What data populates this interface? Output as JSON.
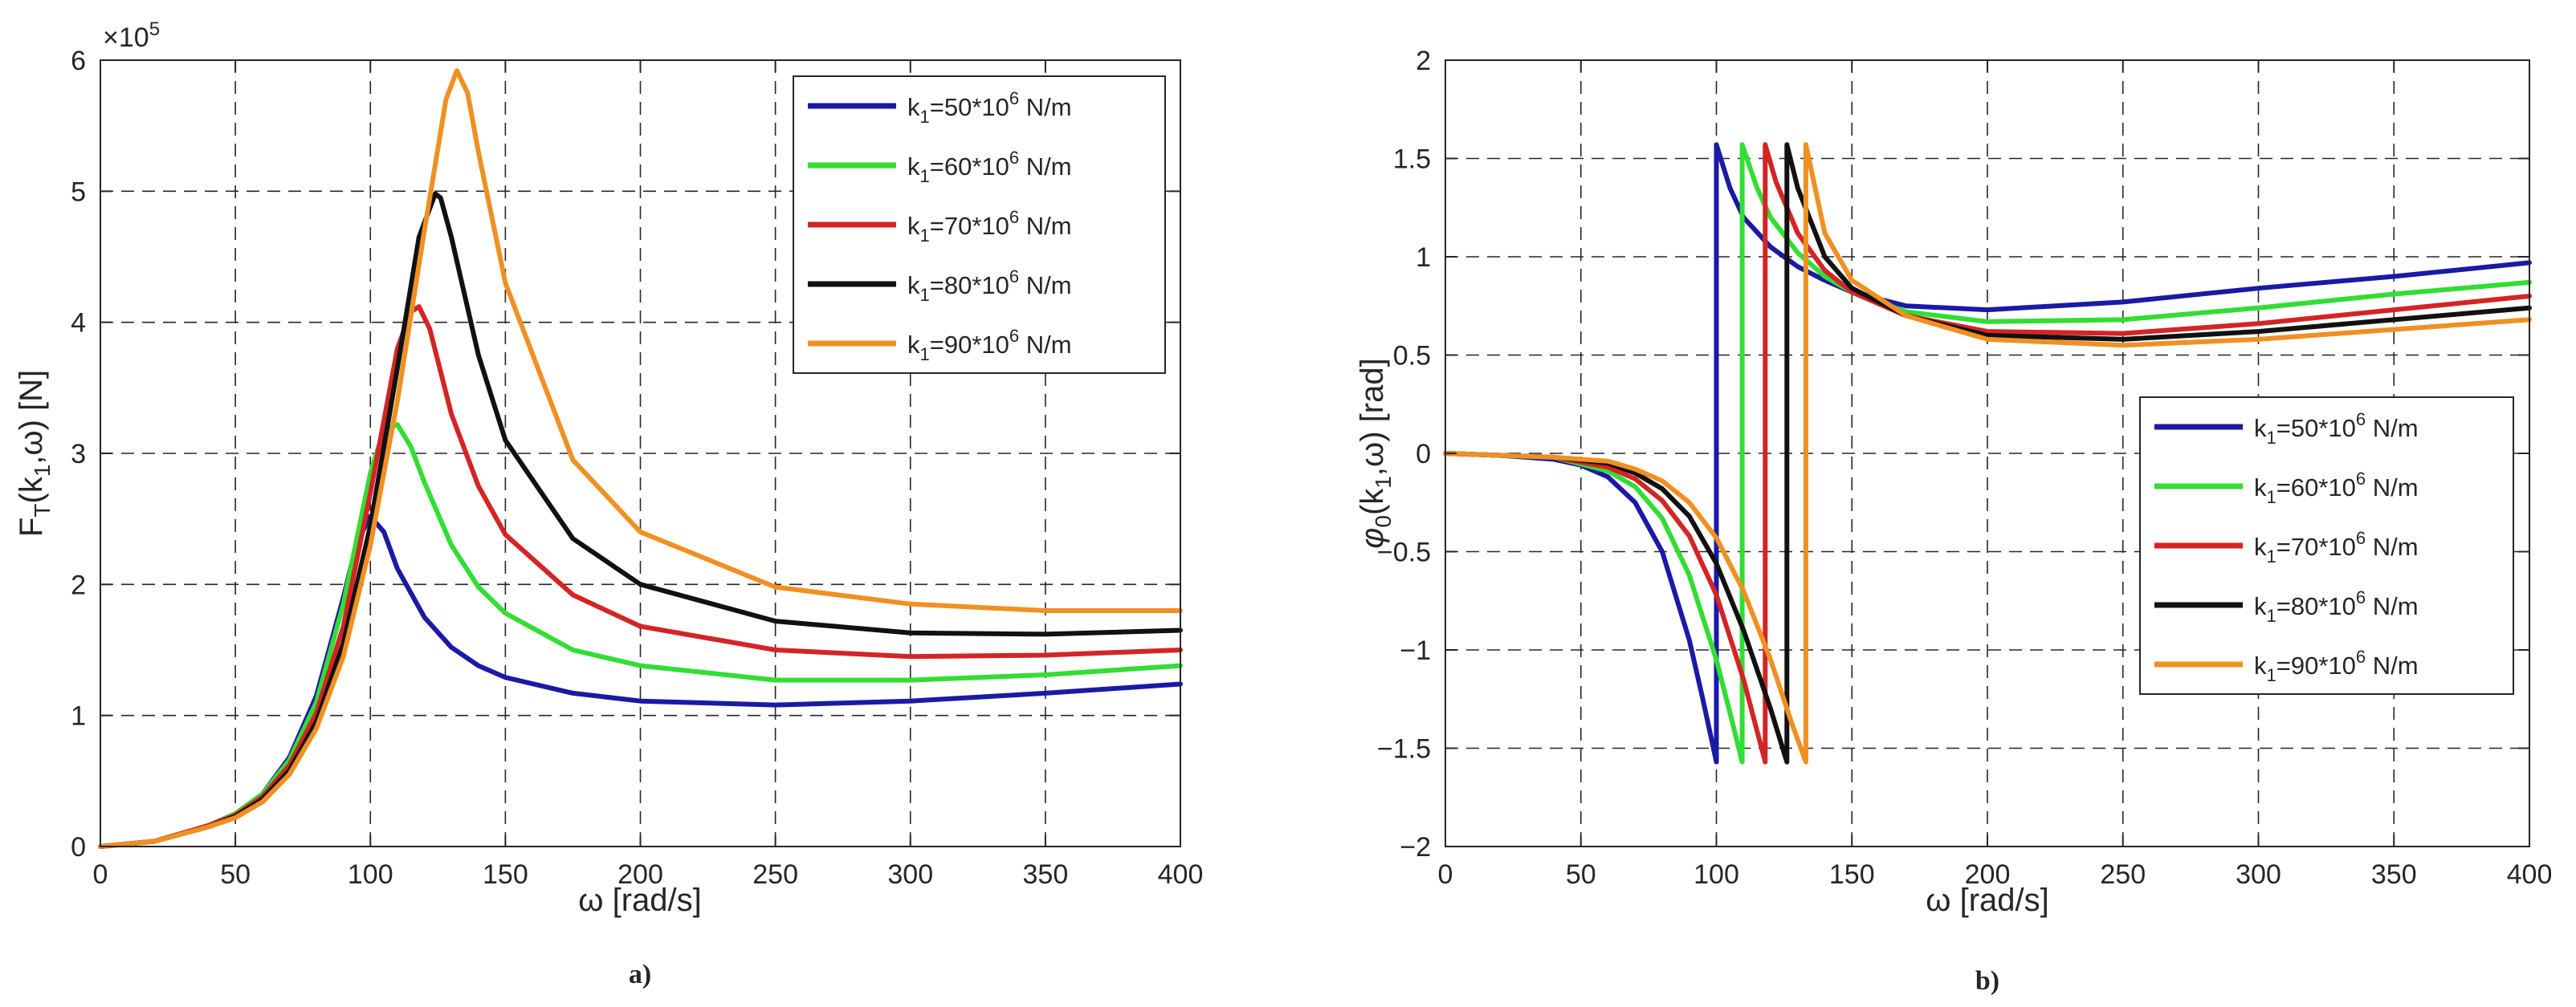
{
  "chart_data": [
    {
      "type": "line",
      "panel_label": "a)",
      "title": "",
      "xlabel": "ω [rad/s]",
      "ylabel": "F_T(k_1,ω) [N]",
      "ylabel_parts": {
        "main": "F",
        "sub": "T",
        "args_open": "(k",
        "args_sub": "1",
        "args_close": ",ω) [N]"
      },
      "exponent_label": "×10",
      "exponent_power": "5",
      "xlim": [
        0,
        400
      ],
      "ylim": [
        0,
        6
      ],
      "grid": true,
      "legend_position": "top-right",
      "xticks": [
        0,
        50,
        100,
        150,
        200,
        250,
        300,
        350,
        400
      ],
      "xtick_labels": [
        "0",
        "50",
        "100",
        "150",
        "200",
        "250",
        "300",
        "350",
        "400"
      ],
      "yticks": [
        0,
        1,
        2,
        3,
        4,
        5,
        6
      ],
      "ytick_labels": [
        "0",
        "1",
        "2",
        "3",
        "4",
        "5",
        "6"
      ],
      "series": [
        {
          "name": "k1=50*10^6 N/m",
          "legend": {
            "k": "k",
            "sub": "1",
            "mid": "=50*10",
            "sup": "6",
            "unit": " N/m"
          },
          "color": "#1a1aa6",
          "x": [
            0,
            20,
            40,
            50,
            60,
            70,
            80,
            90,
            95,
            100,
            105,
            110,
            120,
            130,
            140,
            150,
            175,
            200,
            250,
            300,
            350,
            400
          ],
          "y": [
            0,
            0.04,
            0.16,
            0.25,
            0.4,
            0.68,
            1.15,
            1.9,
            2.32,
            2.52,
            2.4,
            2.12,
            1.75,
            1.52,
            1.38,
            1.29,
            1.17,
            1.11,
            1.08,
            1.11,
            1.17,
            1.24
          ]
        },
        {
          "name": "k1=60*10^6 N/m",
          "legend": {
            "k": "k",
            "sub": "1",
            "mid": "=60*10",
            "sup": "6",
            "unit": " N/m"
          },
          "color": "#33dd33",
          "x": [
            0,
            20,
            40,
            50,
            60,
            70,
            80,
            90,
            100,
            105,
            110,
            115,
            120,
            130,
            140,
            150,
            175,
            200,
            250,
            300,
            350,
            400
          ],
          "y": [
            0,
            0.04,
            0.16,
            0.25,
            0.4,
            0.66,
            1.1,
            1.85,
            2.85,
            3.18,
            3.22,
            3.05,
            2.78,
            2.3,
            1.98,
            1.78,
            1.5,
            1.38,
            1.27,
            1.27,
            1.31,
            1.38
          ]
        },
        {
          "name": "k1=70*10^6 N/m",
          "legend": {
            "k": "k",
            "sub": "1",
            "mid": "=70*10",
            "sup": "6",
            "unit": " N/m"
          },
          "color": "#d42424",
          "x": [
            0,
            20,
            40,
            50,
            60,
            70,
            80,
            90,
            100,
            110,
            115,
            118,
            122,
            130,
            140,
            150,
            175,
            200,
            250,
            300,
            350,
            400
          ],
          "y": [
            0,
            0.04,
            0.16,
            0.24,
            0.38,
            0.62,
            1.02,
            1.68,
            2.7,
            3.8,
            4.08,
            4.12,
            3.95,
            3.3,
            2.75,
            2.38,
            1.92,
            1.68,
            1.5,
            1.45,
            1.46,
            1.5
          ]
        },
        {
          "name": "k1=80*10^6 N/m",
          "legend": {
            "k": "k",
            "sub": "1",
            "mid": "=80*10",
            "sup": "6",
            "unit": " N/m"
          },
          "color": "#111111",
          "x": [
            0,
            20,
            40,
            50,
            60,
            70,
            80,
            90,
            100,
            110,
            118,
            124,
            126,
            130,
            140,
            150,
            175,
            200,
            250,
            300,
            350,
            400
          ],
          "y": [
            0,
            0.04,
            0.15,
            0.23,
            0.36,
            0.58,
            0.95,
            1.55,
            2.45,
            3.65,
            4.65,
            4.98,
            4.95,
            4.65,
            3.75,
            3.1,
            2.35,
            2.0,
            1.72,
            1.63,
            1.62,
            1.65
          ]
        },
        {
          "name": "k1=90*10^6 N/m",
          "legend": {
            "k": "k",
            "sub": "1",
            "mid": "=90*10",
            "sup": "6",
            "unit": " N/m"
          },
          "color": "#f09022",
          "x": [
            0,
            20,
            40,
            50,
            60,
            70,
            80,
            90,
            100,
            110,
            120,
            128,
            132,
            136,
            140,
            150,
            175,
            200,
            250,
            300,
            350,
            400
          ],
          "y": [
            0,
            0.04,
            0.15,
            0.22,
            0.34,
            0.55,
            0.9,
            1.45,
            2.3,
            3.4,
            4.7,
            5.7,
            5.92,
            5.75,
            5.3,
            4.3,
            2.95,
            2.4,
            1.98,
            1.85,
            1.8,
            1.8
          ]
        }
      ]
    },
    {
      "type": "line",
      "panel_label": "b)",
      "title": "",
      "xlabel": "ω [rad/s]",
      "ylabel": "φ_0(k_1,ω) [rad]",
      "ylabel_parts": {
        "main": "φ",
        "sub": "0",
        "args_open": "(k",
        "args_sub": "1",
        "args_close": ",ω) [rad]"
      },
      "xlim": [
        0,
        400
      ],
      "ylim": [
        -2,
        2
      ],
      "grid": true,
      "legend_position": "center-right",
      "xticks": [
        0,
        50,
        100,
        150,
        200,
        250,
        300,
        350,
        400
      ],
      "xtick_labels": [
        "0",
        "50",
        "100",
        "150",
        "200",
        "250",
        "300",
        "350",
        "400"
      ],
      "yticks": [
        -2,
        -1.5,
        -1,
        -0.5,
        0,
        0.5,
        1,
        1.5,
        2
      ],
      "ytick_labels": [
        "−2",
        "−1.5",
        "−1",
        "−0.5",
        "0",
        "0.5",
        "1",
        "1.5",
        "2"
      ],
      "series": [
        {
          "name": "k1=50*10^6 N/m",
          "legend": {
            "k": "k",
            "sub": "1",
            "mid": "=50*10",
            "sup": "6",
            "unit": " N/m"
          },
          "color": "#1a1aa6",
          "x": [
            0,
            20,
            40,
            50,
            60,
            70,
            80,
            90,
            95,
            100,
            100.01,
            105,
            110,
            120,
            130,
            140,
            150,
            170,
            200,
            250,
            300,
            350,
            400
          ],
          "y": [
            0,
            -0.01,
            -0.03,
            -0.06,
            -0.12,
            -0.25,
            -0.5,
            -0.95,
            -1.25,
            -1.57,
            1.57,
            1.35,
            1.2,
            1.05,
            0.95,
            0.88,
            0.82,
            0.75,
            0.73,
            0.77,
            0.84,
            0.9,
            0.97
          ]
        },
        {
          "name": "k1=60*10^6 N/m",
          "legend": {
            "k": "k",
            "sub": "1",
            "mid": "=60*10",
            "sup": "6",
            "unit": " N/m"
          },
          "color": "#33dd33",
          "x": [
            0,
            20,
            40,
            60,
            70,
            80,
            90,
            100,
            105,
            109.5,
            109.51,
            115,
            120,
            130,
            140,
            150,
            170,
            200,
            250,
            300,
            350,
            400
          ],
          "y": [
            0,
            -0.01,
            -0.02,
            -0.09,
            -0.17,
            -0.33,
            -0.62,
            -1.05,
            -1.32,
            -1.57,
            1.57,
            1.35,
            1.2,
            1.02,
            0.9,
            0.82,
            0.72,
            0.67,
            0.68,
            0.74,
            0.81,
            0.87
          ]
        },
        {
          "name": "k1=70*10^6 N/m",
          "legend": {
            "k": "k",
            "sub": "1",
            "mid": "=70*10",
            "sup": "6",
            "unit": " N/m"
          },
          "color": "#d42424",
          "x": [
            0,
            20,
            40,
            60,
            70,
            80,
            90,
            100,
            110,
            118,
            118.01,
            122,
            130,
            140,
            150,
            170,
            200,
            250,
            300,
            350,
            400
          ],
          "y": [
            0,
            -0.01,
            -0.02,
            -0.07,
            -0.13,
            -0.24,
            -0.42,
            -0.72,
            -1.15,
            -1.57,
            1.57,
            1.38,
            1.12,
            0.93,
            0.82,
            0.7,
            0.62,
            0.61,
            0.66,
            0.73,
            0.8
          ]
        },
        {
          "name": "k1=80*10^6 N/m",
          "legend": {
            "k": "k",
            "sub": "1",
            "mid": "=80*10",
            "sup": "6",
            "unit": " N/m"
          },
          "color": "#111111",
          "x": [
            0,
            20,
            40,
            60,
            70,
            80,
            90,
            100,
            110,
            120,
            126,
            126.01,
            130,
            140,
            150,
            170,
            200,
            250,
            300,
            350,
            400
          ],
          "y": [
            0,
            -0.01,
            -0.02,
            -0.05,
            -0.1,
            -0.18,
            -0.32,
            -0.56,
            -0.9,
            -1.3,
            -1.57,
            1.57,
            1.35,
            1.0,
            0.84,
            0.7,
            0.6,
            0.58,
            0.62,
            0.68,
            0.74
          ]
        },
        {
          "name": "k1=90*10^6 N/m",
          "legend": {
            "k": "k",
            "sub": "1",
            "mid": "=90*10",
            "sup": "6",
            "unit": " N/m"
          },
          "color": "#f09022",
          "x": [
            0,
            20,
            40,
            60,
            70,
            80,
            90,
            100,
            110,
            120,
            128,
            133,
            133.01,
            140,
            150,
            170,
            200,
            250,
            300,
            350,
            400
          ],
          "y": [
            0,
            -0.01,
            -0.02,
            -0.04,
            -0.08,
            -0.14,
            -0.25,
            -0.43,
            -0.7,
            -1.05,
            -1.38,
            -1.57,
            1.57,
            1.12,
            0.88,
            0.7,
            0.58,
            0.55,
            0.58,
            0.63,
            0.68
          ]
        }
      ]
    }
  ]
}
